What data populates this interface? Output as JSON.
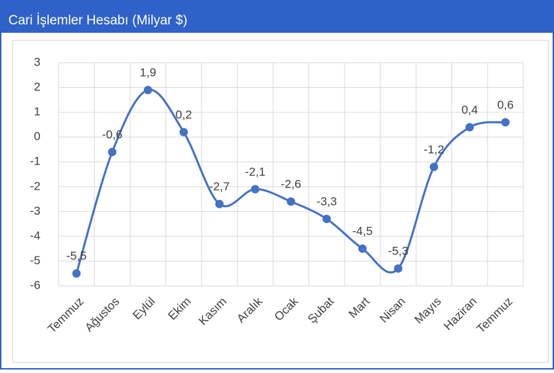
{
  "chart_data": {
    "type": "line",
    "title": "Cari İşlemler Hesabı (Milyar $)",
    "categories": [
      "Temmuz",
      "Ağustos",
      "Eylül",
      "Ekim",
      "Kasım",
      "Aralık",
      "Ocak",
      "Şubat",
      "Mart",
      "Nisan",
      "Mayıs",
      "Haziran",
      "Temmuz"
    ],
    "values": [
      -5.5,
      -0.6,
      1.9,
      0.2,
      -2.7,
      -2.1,
      -2.6,
      -3.3,
      -4.5,
      -5.3,
      -1.2,
      0.4,
      0.6
    ],
    "value_labels": [
      "-5,5",
      "-0,6",
      "1,9",
      "0,2",
      "-2,7",
      "-2,1",
      "-2,6",
      "-3,3",
      "-4,5",
      "-5,3",
      "-1,2",
      "0,4",
      "0,6"
    ],
    "color": "#4472c4",
    "smooth": true,
    "ylim": [
      -6,
      3
    ],
    "yticks": [
      -6,
      -5,
      -4,
      -3,
      -2,
      -1,
      0,
      1,
      2,
      3
    ],
    "grid": true
  }
}
